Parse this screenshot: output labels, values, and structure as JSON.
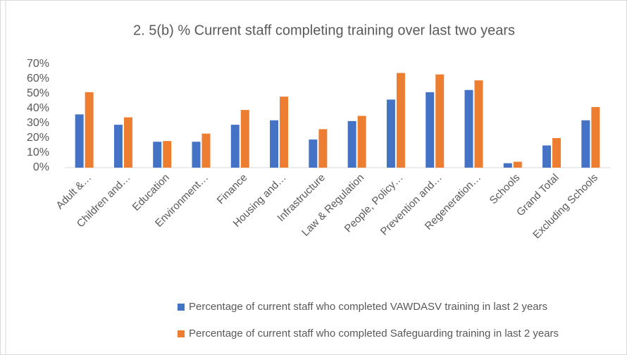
{
  "chart_data": {
    "type": "bar",
    "title": "2. 5(b) % Current staff completing training over last two years",
    "categories": [
      "Adult &…",
      "Children and…",
      "Education",
      "Environment…",
      "Finance",
      "Housing and…",
      "Infrastructure",
      "Law & Regulation",
      "People, Policy…",
      "Prevention and…",
      "Regeneration…",
      "Schools",
      "Grand Total",
      "Excluding Schools"
    ],
    "series": [
      {
        "name": "Percentage of current staff who completed VAWDASV training in last 2 years",
        "color": "#4472c4",
        "values": [
          36,
          29,
          17.5,
          17.5,
          29,
          32,
          19,
          31.5,
          46,
          51,
          52.5,
          3,
          15,
          32
        ]
      },
      {
        "name": "Percentage of current staff who completed Safeguarding training in last 2 years",
        "color": "#ed7d31",
        "values": [
          51,
          34,
          18,
          23,
          39,
          48,
          26,
          35,
          64,
          63,
          59,
          4,
          20,
          41
        ]
      }
    ],
    "ylim": [
      0,
      70
    ],
    "yticks": [
      {
        "value": 0,
        "label": "0%"
      },
      {
        "value": 10,
        "label": "10%"
      },
      {
        "value": 20,
        "label": "20%"
      },
      {
        "value": 30,
        "label": "30%"
      },
      {
        "value": 40,
        "label": "40%"
      },
      {
        "value": 50,
        "label": "50%"
      },
      {
        "value": 60,
        "label": "60%"
      },
      {
        "value": 70,
        "label": "70%"
      }
    ],
    "grid": false
  }
}
